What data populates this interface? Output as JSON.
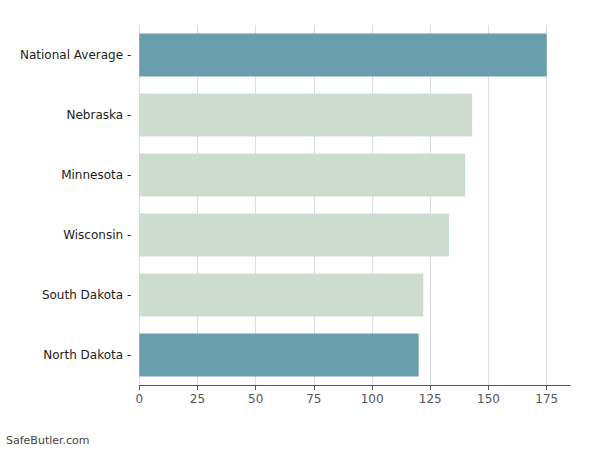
{
  "chart_data": {
    "type": "bar",
    "orientation": "horizontal",
    "categories": [
      "North Dakota -",
      "South Dakota -",
      "Wisconsin -",
      "Minnesota -",
      "Nebraska -",
      "National Average -"
    ],
    "values": [
      120,
      122,
      133,
      140,
      143,
      175
    ],
    "colors": [
      "#6a9eaf",
      "#ccddd0",
      "#ccddd0",
      "#ccddd0",
      "#ccddd0",
      "#6a9eaf"
    ],
    "xlim": [
      0,
      185
    ],
    "xticks": [
      0,
      25,
      50,
      75,
      100,
      125,
      150,
      175
    ],
    "grid": true,
    "annotations": [
      "SafeButler.com"
    ]
  }
}
